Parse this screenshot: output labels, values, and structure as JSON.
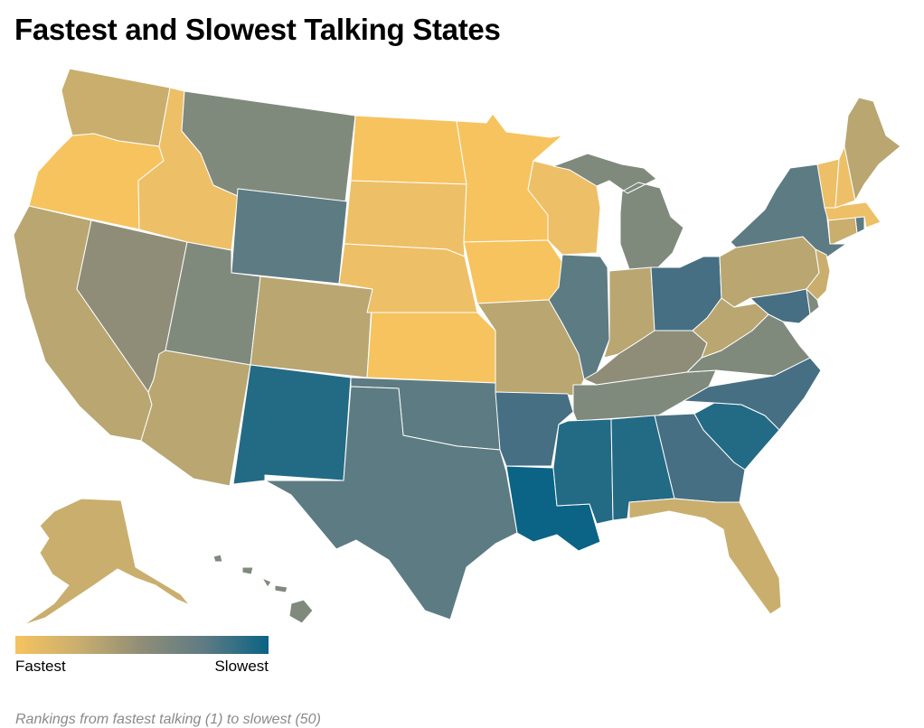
{
  "title": "Fastest and Slowest Talking States",
  "legend": {
    "min_label": "Fastest",
    "max_label": "Slowest",
    "color_scale": [
      "#f6c35f",
      "#c9ae6e",
      "#8f8d77",
      "#5d7b83",
      "#0b6385"
    ]
  },
  "note": "Rankings from fastest talking (1) to slowest (50)",
  "colors": {
    "c1": "#f6c35f",
    "c2": "#edbf67",
    "c3": "#c9ae6e",
    "c4": "#b9a671",
    "c5": "#8f8d77",
    "c6": "#7f8a7d",
    "c7": "#5d7b83",
    "c8": "#466f83",
    "c9": "#236a85",
    "c10": "#0b6385"
  },
  "states": [
    {
      "name": "Washington",
      "color_key": "c3"
    },
    {
      "name": "Oregon",
      "color_key": "c1"
    },
    {
      "name": "California",
      "color_key": "c4"
    },
    {
      "name": "Nevada",
      "color_key": "c5"
    },
    {
      "name": "Idaho",
      "color_key": "c2"
    },
    {
      "name": "Montana",
      "color_key": "c6"
    },
    {
      "name": "Wyoming",
      "color_key": "c7"
    },
    {
      "name": "Utah",
      "color_key": "c6"
    },
    {
      "name": "Arizona",
      "color_key": "c4"
    },
    {
      "name": "Colorado",
      "color_key": "c4"
    },
    {
      "name": "New Mexico",
      "color_key": "c9"
    },
    {
      "name": "North Dakota",
      "color_key": "c1"
    },
    {
      "name": "South Dakota",
      "color_key": "c2"
    },
    {
      "name": "Nebraska",
      "color_key": "c2"
    },
    {
      "name": "Kansas",
      "color_key": "c1"
    },
    {
      "name": "Oklahoma",
      "color_key": "c7"
    },
    {
      "name": "Texas",
      "color_key": "c7"
    },
    {
      "name": "Minnesota",
      "color_key": "c1"
    },
    {
      "name": "Iowa",
      "color_key": "c1"
    },
    {
      "name": "Missouri",
      "color_key": "c4"
    },
    {
      "name": "Arkansas",
      "color_key": "c8"
    },
    {
      "name": "Louisiana",
      "color_key": "c10"
    },
    {
      "name": "Wisconsin",
      "color_key": "c2"
    },
    {
      "name": "Illinois",
      "color_key": "c7"
    },
    {
      "name": "Michigan",
      "color_key": "c6"
    },
    {
      "name": "Indiana",
      "color_key": "c4"
    },
    {
      "name": "Ohio",
      "color_key": "c8"
    },
    {
      "name": "Kentucky",
      "color_key": "c5"
    },
    {
      "name": "Tennessee",
      "color_key": "c6"
    },
    {
      "name": "Mississippi",
      "color_key": "c9"
    },
    {
      "name": "Alabama",
      "color_key": "c9"
    },
    {
      "name": "Georgia",
      "color_key": "c8"
    },
    {
      "name": "Florida",
      "color_key": "c3"
    },
    {
      "name": "South Carolina",
      "color_key": "c9"
    },
    {
      "name": "North Carolina",
      "color_key": "c8"
    },
    {
      "name": "Virginia",
      "color_key": "c6"
    },
    {
      "name": "West Virginia",
      "color_key": "c4"
    },
    {
      "name": "Pennsylvania",
      "color_key": "c4"
    },
    {
      "name": "New York",
      "color_key": "c7"
    },
    {
      "name": "Maryland",
      "color_key": "c8"
    },
    {
      "name": "Delaware",
      "color_key": "c6"
    },
    {
      "name": "New Jersey",
      "color_key": "c3"
    },
    {
      "name": "Connecticut",
      "color_key": "c3"
    },
    {
      "name": "Rhode Island",
      "color_key": "c7"
    },
    {
      "name": "Massachusetts",
      "color_key": "c2"
    },
    {
      "name": "Vermont",
      "color_key": "c2"
    },
    {
      "name": "New Hampshire",
      "color_key": "c2"
    },
    {
      "name": "Maine",
      "color_key": "c4"
    },
    {
      "name": "Alaska",
      "color_key": "c3"
    },
    {
      "name": "Hawaii",
      "color_key": "c6"
    }
  ]
}
